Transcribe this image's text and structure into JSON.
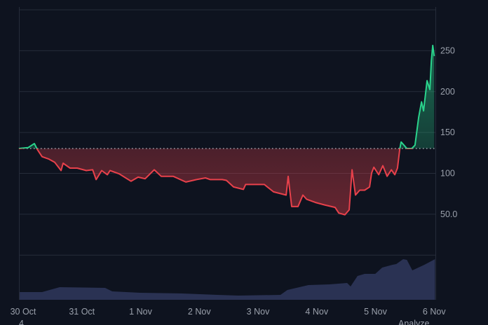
{
  "colors": {
    "background": "#0e131f",
    "grid": "#262c3a",
    "text": "#9aa0ab",
    "above_baseline": "#2ad38c",
    "below_baseline": "#e8414b",
    "volume": "#2a3253"
  },
  "footer": {
    "left_text": "4",
    "right_text": "Analyze"
  },
  "chart_data": {
    "type": "area",
    "style": "baseline",
    "baseline": 130,
    "ylim": [
      -55,
      303
    ],
    "grid": true,
    "y_ticks": [
      0,
      50,
      100,
      150,
      200,
      250,
      300
    ],
    "y_tick_labels": [
      {
        "value": 250,
        "label": "250"
      },
      {
        "value": 200,
        "label": "200"
      },
      {
        "value": 150,
        "label": "150"
      },
      {
        "value": 100,
        "label": "100"
      },
      {
        "value": 50,
        "label": "50.0"
      }
    ],
    "x_tick_labels": [
      "30 Oct",
      "31 Oct",
      "1 Nov",
      "2 Nov",
      "3 Nov",
      "4 Nov",
      "5 Nov",
      "6 Nov"
    ],
    "x_tick_dates": [
      "10-30 00:00",
      "10-31 00:00",
      "11-01 00:00",
      "11-02 00:00",
      "11-03 00:00",
      "11-04 00:00",
      "11-05 00:00",
      "11-06 00:00"
    ],
    "price": [
      [
        "10-29 22:15",
        130
      ],
      [
        "10-30 02:00",
        131
      ],
      [
        "10-30 04:35",
        136
      ],
      [
        "10-30 05:45",
        129
      ],
      [
        "10-30 07:45",
        120
      ],
      [
        "10-30 10:35",
        117
      ],
      [
        "10-30 12:55",
        113
      ],
      [
        "10-30 15:30",
        103
      ],
      [
        "10-30 16:20",
        112
      ],
      [
        "10-30 19:10",
        106
      ],
      [
        "10-30 22:05",
        106
      ],
      [
        "10-31 01:50",
        103
      ],
      [
        "10-31 04:25",
        104
      ],
      [
        "10-31 05:50",
        92
      ],
      [
        "10-31 08:05",
        103
      ],
      [
        "10-31 10:25",
        98
      ],
      [
        "10-31 11:30",
        103
      ],
      [
        "10-31 15:15",
        99
      ],
      [
        "10-31 20:05",
        90
      ],
      [
        "10-31 23:00",
        95
      ],
      [
        "11-01 01:50",
        93
      ],
      [
        "11-01 05:35",
        104
      ],
      [
        "11-01 08:25",
        96
      ],
      [
        "11-01 13:20",
        96
      ],
      [
        "11-01 18:30",
        89
      ],
      [
        "11-01 22:50",
        92
      ],
      [
        "11-02 02:30",
        94
      ],
      [
        "11-02 04:30",
        92
      ],
      [
        "11-02 07:25",
        92
      ],
      [
        "11-02 09:25",
        92
      ],
      [
        "11-02 11:05",
        91
      ],
      [
        "11-02 14:00",
        83
      ],
      [
        "11-02 18:00",
        80
      ],
      [
        "11-02 18:55",
        86
      ],
      [
        "11-03 02:35",
        86
      ],
      [
        "11-03 06:20",
        77
      ],
      [
        "11-03 11:30",
        73
      ],
      [
        "11-03 12:20",
        96
      ],
      [
        "11-03 13:45",
        59
      ],
      [
        "11-03 16:20",
        59
      ],
      [
        "11-03 18:20",
        73
      ],
      [
        "11-03 19:50",
        68
      ],
      [
        "11-03 23:30",
        64
      ],
      [
        "11-04 03:15",
        61
      ],
      [
        "11-04 07:30",
        58
      ],
      [
        "11-04 09:00",
        51
      ],
      [
        "11-04 11:30",
        49
      ],
      [
        "11-04 13:15",
        55
      ],
      [
        "11-04 14:25",
        104
      ],
      [
        "11-04 15:50",
        73
      ],
      [
        "11-04 17:35",
        79
      ],
      [
        "11-04 19:35",
        79
      ],
      [
        "11-04 21:35",
        83
      ],
      [
        "11-04 22:25",
        100
      ],
      [
        "11-04 23:20",
        107
      ],
      [
        "11-05 01:20",
        98
      ],
      [
        "11-05 03:00",
        109
      ],
      [
        "11-05 04:45",
        96
      ],
      [
        "11-05 06:30",
        104
      ],
      [
        "11-05 07:55",
        98
      ],
      [
        "11-05 09:00",
        106
      ],
      [
        "11-05 09:55",
        129
      ],
      [
        "11-05 10:30",
        138
      ],
      [
        "11-05 12:50",
        130
      ],
      [
        "11-05 14:50",
        130
      ],
      [
        "11-05 16:10",
        134
      ],
      [
        "11-05 17:40",
        168
      ],
      [
        "11-05 18:50",
        187
      ],
      [
        "11-05 19:40",
        176
      ],
      [
        "11-05 21:05",
        213
      ],
      [
        "11-05 22:15",
        202
      ],
      [
        "11-05 22:50",
        237
      ],
      [
        "11-05 23:25",
        256
      ],
      [
        "11-06 00:00",
        243
      ]
    ],
    "volume": [
      [
        "10-29 22:35",
        11
      ],
      [
        "10-30 07:45",
        11
      ],
      [
        "10-30 14:55",
        18
      ],
      [
        "10-31 09:30",
        17
      ],
      [
        "10-31 12:25",
        12
      ],
      [
        "10-31 23:55",
        10
      ],
      [
        "11-01 17:05",
        9
      ],
      [
        "11-02 07:25",
        7
      ],
      [
        "11-02 16:00",
        6
      ],
      [
        "11-03 09:10",
        7
      ],
      [
        "11-03 12:00",
        14
      ],
      [
        "11-03 20:35",
        21
      ],
      [
        "11-04 05:10",
        22
      ],
      [
        "11-04 12:25",
        24
      ],
      [
        "11-04 13:50",
        19
      ],
      [
        "11-04 16:40",
        34
      ],
      [
        "11-04 19:35",
        37
      ],
      [
        "11-04 23:55",
        37
      ],
      [
        "11-05 02:45",
        46
      ],
      [
        "11-05 07:00",
        50
      ],
      [
        "11-05 08:30",
        51
      ],
      [
        "11-05 11:20",
        58
      ],
      [
        "11-05 12:50",
        57
      ],
      [
        "11-05 15:05",
        42
      ],
      [
        "11-05 20:00",
        50
      ],
      [
        "11-06 00:20",
        58
      ]
    ]
  }
}
